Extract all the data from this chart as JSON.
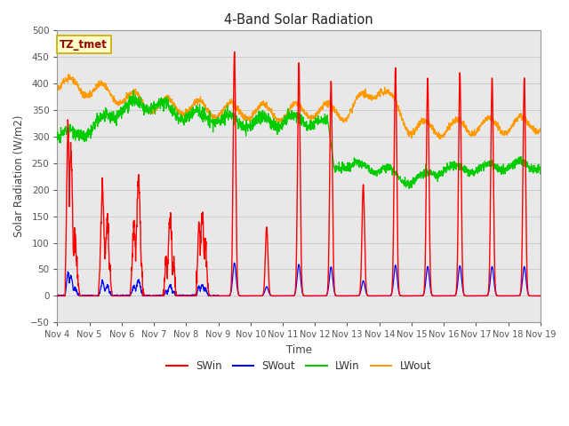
{
  "title": "4-Band Solar Radiation",
  "xlabel": "Time",
  "ylabel": "Solar Radiation (W/m2)",
  "ylim": [
    -50,
    500
  ],
  "annotation": "TZ_tmet",
  "legend": [
    "SWin",
    "SWout",
    "LWin",
    "LWout"
  ],
  "colors": {
    "SWin": "#ff0000",
    "SWout": "#0000ff",
    "LWin": "#00cc00",
    "LWout": "#ff9900"
  },
  "xtick_labels": [
    "Nov 4",
    "Nov 5",
    "Nov 6",
    "Nov 7",
    "Nov 8",
    "Nov 9",
    "Nov 10",
    "Nov 11",
    "Nov 12",
    "Nov 13",
    "Nov 14",
    "Nov 15",
    "Nov 16",
    "Nov 17",
    "Nov 18",
    "Nov 19"
  ],
  "grid_color": "#cccccc",
  "plot_bg": "#e8e8e8"
}
